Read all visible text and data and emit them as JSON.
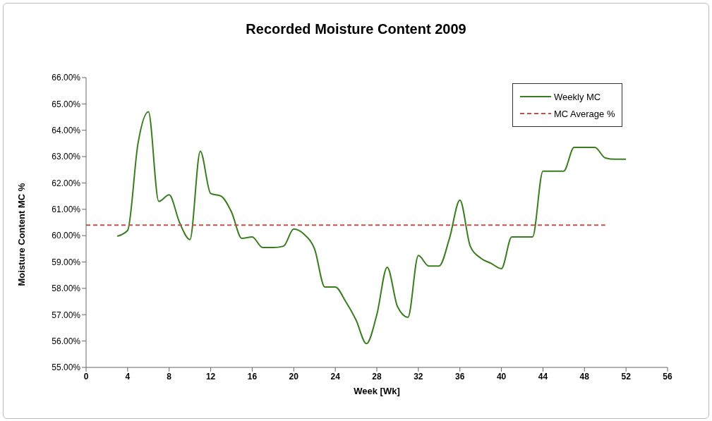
{
  "chart_data": {
    "type": "line",
    "title": "Recorded Moisture Content 2009",
    "xlabel": "Week [Wk]",
    "ylabel": "Moisture Content MC %",
    "xlim": [
      0,
      56
    ],
    "xticks": [
      0,
      4,
      8,
      12,
      16,
      20,
      24,
      28,
      32,
      36,
      40,
      44,
      48,
      52,
      56
    ],
    "ylim": [
      55,
      66
    ],
    "yticks": [
      {
        "value": 55,
        "label": "55.00%"
      },
      {
        "value": 56,
        "label": "56.00%"
      },
      {
        "value": 57,
        "label": "57.00%"
      },
      {
        "value": 58,
        "label": "58.00%"
      },
      {
        "value": 59,
        "label": "59.00%"
      },
      {
        "value": 60,
        "label": "60.00%"
      },
      {
        "value": 61,
        "label": "61.00%"
      },
      {
        "value": 62,
        "label": "62.00%"
      },
      {
        "value": 63,
        "label": "63.00%"
      },
      {
        "value": 64,
        "label": "64.00%"
      },
      {
        "value": 65,
        "label": "65.00%"
      },
      {
        "value": 66,
        "label": "66.00%"
      }
    ],
    "grid": false,
    "legend": "top right",
    "marker": "none",
    "series": [
      {
        "name": "Weekly MC",
        "color": "#3a7d1e",
        "line_style": "solid",
        "x": [
          3,
          4,
          5,
          6,
          7,
          8,
          9,
          10,
          11,
          12,
          13,
          14,
          15,
          16,
          17,
          18,
          19,
          20,
          21,
          22,
          23,
          24,
          25,
          26,
          27,
          28,
          29,
          30,
          31,
          32,
          33,
          34,
          35,
          36,
          37,
          38,
          39,
          40,
          41,
          42,
          43,
          44,
          45,
          46,
          47,
          48,
          49,
          50,
          51,
          52
        ],
        "values": [
          59.98,
          60.2,
          63.5,
          64.7,
          61.3,
          61.55,
          60.5,
          59.85,
          63.2,
          61.6,
          61.5,
          60.9,
          59.9,
          59.95,
          59.55,
          59.55,
          59.6,
          60.25,
          60.05,
          59.5,
          58.05,
          58.05,
          57.5,
          56.8,
          55.9,
          57.0,
          58.8,
          57.3,
          56.9,
          59.25,
          58.85,
          58.85,
          59.9,
          61.35,
          59.6,
          59.15,
          58.95,
          58.75,
          59.95,
          59.95,
          59.95,
          62.45,
          62.45,
          62.45,
          63.35,
          63.35,
          63.35,
          62.95,
          62.9,
          62.9
        ]
      },
      {
        "name": "MC Average %",
        "color": "#c0504d",
        "line_style": "dashed",
        "x": [
          0,
          50
        ],
        "values": [
          60.4,
          60.4
        ]
      }
    ]
  }
}
